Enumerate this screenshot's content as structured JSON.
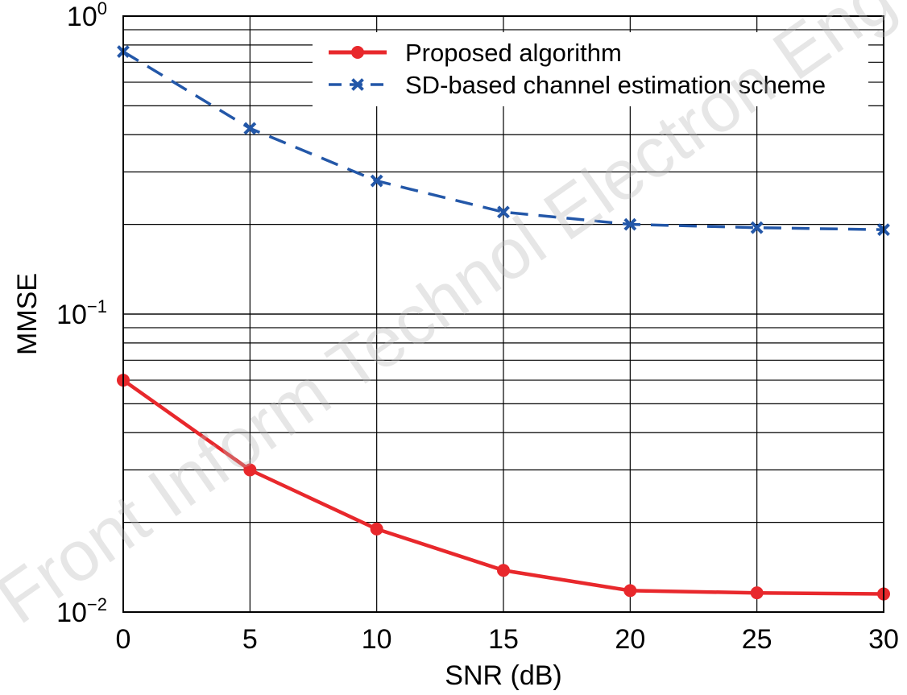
{
  "chart_data": {
    "type": "line",
    "title": "",
    "xlabel": "SNR (dB)",
    "ylabel": "MMSE",
    "xlim": [
      0,
      30
    ],
    "ylim": [
      0.01,
      1
    ],
    "yscale": "log",
    "grid": true,
    "legend_position": "top-right",
    "x_ticks": [
      "0",
      "5",
      "10",
      "15",
      "20",
      "25",
      "30"
    ],
    "y_ticks": [
      {
        "base": "10",
        "exp": "0",
        "value": 1
      },
      {
        "base": "10",
        "exp": "−1",
        "value": 0.1
      },
      {
        "base": "10",
        "exp": "−2",
        "value": 0.01
      }
    ],
    "x": [
      0,
      5,
      10,
      15,
      20,
      25,
      30
    ],
    "series": [
      {
        "name": "Proposed algorithm",
        "values": [
          0.06,
          0.03,
          0.019,
          0.0138,
          0.0118,
          0.0116,
          0.0115
        ],
        "color": "#e8282c",
        "style": "solid",
        "marker": "circle"
      },
      {
        "name": "SD-based channel estimation scheme",
        "values": [
          0.76,
          0.42,
          0.28,
          0.22,
          0.2,
          0.195,
          0.192
        ],
        "color": "#2357a8",
        "style": "dashed",
        "marker": "x"
      }
    ]
  },
  "watermark": "Front Inform Technol Electron Eng"
}
